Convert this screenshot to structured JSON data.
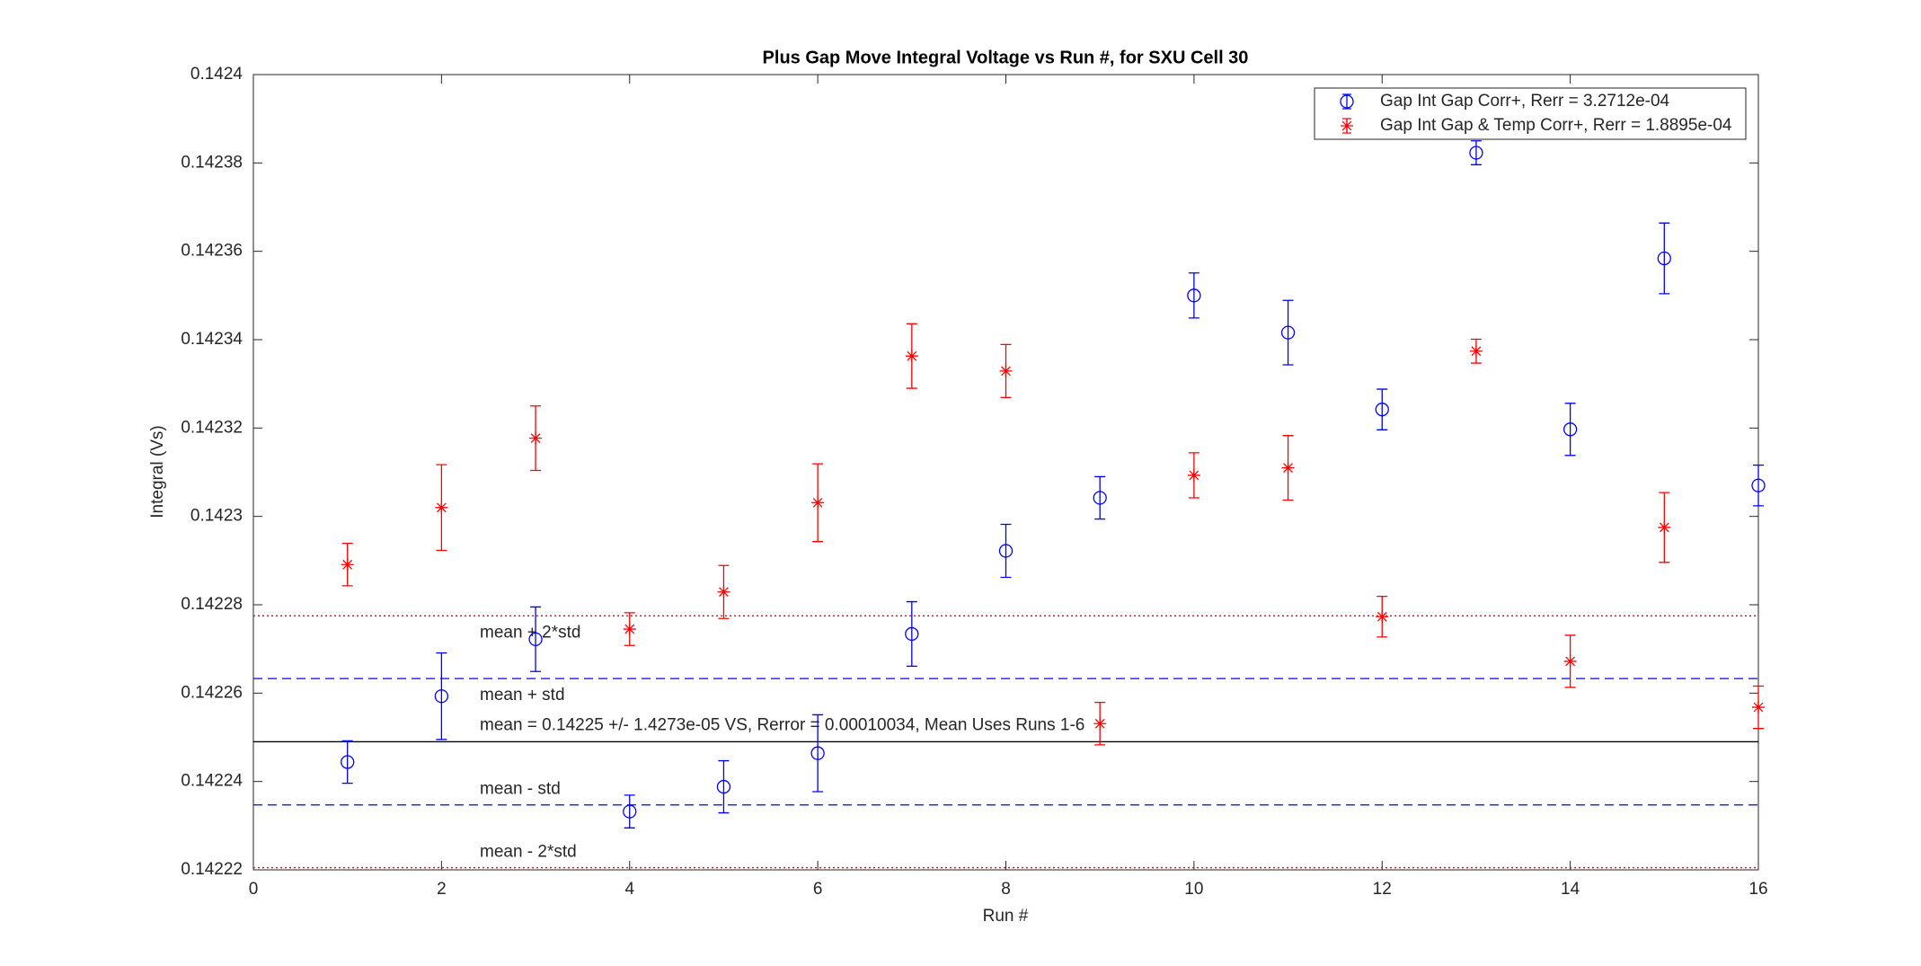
{
  "chart_data": {
    "type": "errorbar",
    "title": "Plus Gap Move Integral Voltage vs Run #, for SXU Cell 30",
    "x_label": "Run #",
    "y_label": "Integral (Vs)",
    "x": [
      1,
      2,
      3,
      4,
      5,
      6,
      7,
      8,
      9,
      10,
      11,
      12,
      13,
      14,
      15,
      16
    ],
    "xlim": [
      0,
      16
    ],
    "xticks": [
      0,
      2,
      4,
      6,
      8,
      10,
      12,
      14,
      16
    ],
    "ylim": [
      0.14222,
      0.1424
    ],
    "yticks": [
      0.14222,
      0.14224,
      0.14226,
      0.14228,
      0.1423,
      0.14232,
      0.14234,
      0.14236,
      0.14238,
      0.1424
    ],
    "legend": "top-right",
    "series": [
      {
        "name": "Gap Int Gap Corr+, Rerr = 3.2712e-04",
        "color": "#0000ff",
        "marker": "circle",
        "values": [
          0.1422444,
          0.1422593,
          0.1422722,
          0.1422332,
          0.1422388,
          0.1422464,
          0.1422734,
          0.1422922,
          0.1423042,
          0.14235,
          0.1423416,
          0.1423242,
          0.1423823,
          0.1423197,
          0.1423584,
          0.142307
        ],
        "errors": [
          4.8e-06,
          9.8e-06,
          7.3e-06,
          3.7e-06,
          5.9e-06,
          8.7e-06,
          7.3e-06,
          6e-06,
          4.8e-06,
          5.1e-06,
          7.3e-06,
          4.6e-06,
          2.7e-06,
          5.9e-06,
          8e-06,
          4.6e-06
        ]
      },
      {
        "name": "Gap Int Gap & Temp  Corr+, Rerr = 1.8895e-04",
        "color": "#ff0000",
        "marker": "asterisk",
        "values": [
          0.1422891,
          0.142302,
          0.1423177,
          0.1422745,
          0.1422829,
          0.1423031,
          0.1423363,
          0.1423329,
          0.1422531,
          0.1423093,
          0.142311,
          0.1422773,
          0.1423374,
          0.1422672,
          0.1422975,
          0.1422568
        ],
        "errors": [
          4.8e-06,
          9.7e-06,
          7.3e-06,
          3.7e-06,
          6e-06,
          8.8e-06,
          7.3e-06,
          6e-06,
          4.8e-06,
          5.1e-06,
          7.3e-06,
          4.6e-06,
          2.7e-06,
          5.9e-06,
          7.9e-06,
          4.8e-06
        ]
      }
    ],
    "reference_lines": [
      {
        "value": 0.1422775,
        "label": "mean + 2*std",
        "color": "#ff0000",
        "style": "dotted"
      },
      {
        "value": 0.1422633,
        "label": "mean + std",
        "color": "#0000ff",
        "style": "dashed"
      },
      {
        "value": 0.142249,
        "label": "mean = 0.14225 +/- 1.4273e-05 VS, Rerror = 0.00010034, Mean Uses Runs 1-6",
        "color": "#000000",
        "style": "solid"
      },
      {
        "value": 0.1422347,
        "label": "mean - std",
        "color": "#0000ff",
        "style": "dashed"
      },
      {
        "value": 0.1422205,
        "label": "mean - 2*std",
        "color": "#ff0000",
        "style": "dotted"
      }
    ]
  }
}
